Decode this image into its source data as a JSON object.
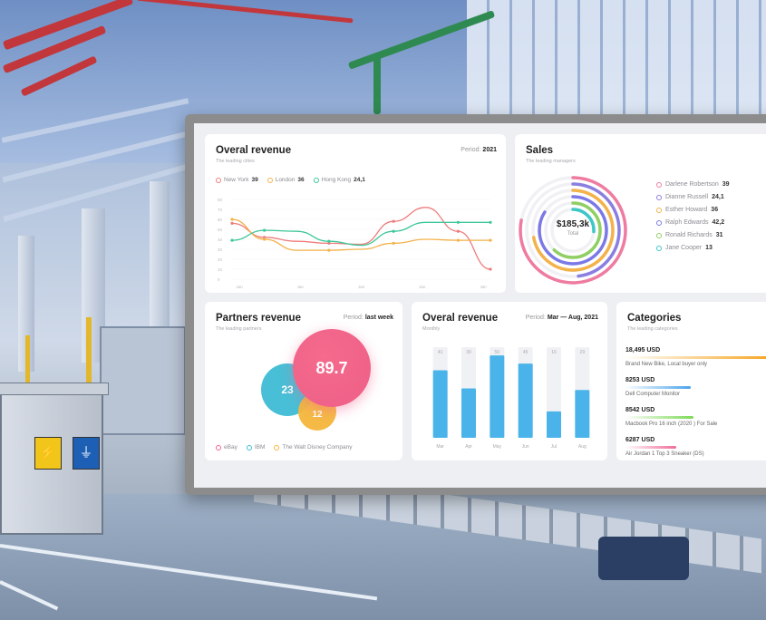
{
  "dashboard": {
    "revenue_line": {
      "title": "Overal revenue",
      "subtitle": "The leading cities",
      "period_label": "Period:",
      "period_value": "2021",
      "legend": [
        {
          "name": "New York",
          "value": "39",
          "color": "#ef7c7c"
        },
        {
          "name": "London",
          "value": "36",
          "color": "#f3b24a"
        },
        {
          "name": "Hong Kong",
          "value": "24,1",
          "color": "#3ec79a"
        }
      ],
      "y_ticks": [
        "80",
        "70",
        "60",
        "50",
        "40",
        "30",
        "20",
        "10",
        "0"
      ],
      "x_ticks": [
        "Jan",
        "Jan",
        "Jan",
        "Jan",
        "Jan"
      ],
      "chart_data": {
        "type": "line",
        "x": [
          0,
          1,
          2,
          3,
          4,
          5,
          6,
          7,
          8
        ],
        "ylim": [
          0,
          80
        ],
        "series": [
          {
            "name": "New York",
            "color": "#ef7c7c",
            "values": [
              56,
              42,
              38,
              36,
              35,
              58,
              72,
              48,
              10
            ]
          },
          {
            "name": "London",
            "color": "#f3b24a",
            "values": [
              60,
              40,
              29,
              29,
              30,
              36,
              40,
              39,
              39
            ]
          },
          {
            "name": "Hong Kong",
            "color": "#3ec79a",
            "values": [
              39,
              49,
              48,
              38,
              34,
              48,
              57,
              57,
              57
            ]
          }
        ]
      }
    },
    "sales": {
      "title": "Sales",
      "subtitle": "The leading managers",
      "total_value": "$185,3k",
      "total_label": "Total",
      "managers": [
        {
          "name": "Darlene Robertson",
          "value": "39",
          "color": "#ef7ca0",
          "share": 0.78
        },
        {
          "name": "Dianne Russell",
          "value": "24,1",
          "color": "#8a7fe0",
          "share": 0.48
        },
        {
          "name": "Esther Howard",
          "value": "36",
          "color": "#f3b24a",
          "share": 0.72
        },
        {
          "name": "Ralph Edwards",
          "value": "42,2",
          "color": "#7b79e6",
          "share": 0.84
        },
        {
          "name": "Ronald Richards",
          "value": "31",
          "color": "#8fcf63",
          "share": 0.62
        },
        {
          "name": "Jane Cooper",
          "value": "13",
          "color": "#3ec7c7",
          "share": 0.26
        }
      ]
    },
    "partners": {
      "title": "Partners revenue",
      "subtitle": "The leading partners",
      "period_label": "Period:",
      "period_value": "last week",
      "bubbles": [
        {
          "name": "eBay",
          "value": "89.7",
          "color": "#f0668e"
        },
        {
          "name": "IBM",
          "value": "23",
          "color": "#3fbcd4"
        },
        {
          "name": "The Walt Disney Company",
          "value": "12",
          "color": "#f5b73c"
        }
      ]
    },
    "revenue_bar": {
      "title": "Overal revenue",
      "subtitle": "Monthly",
      "period_label": "Period:",
      "period_value": "Mar — Aug, 2021",
      "chart_data": {
        "type": "bar",
        "categories": [
          "Mar",
          "Apr",
          "May",
          "Jun",
          "Jul",
          "Aug"
        ],
        "values": [
          41,
          30,
          50,
          45,
          16,
          29
        ],
        "ylim": [
          0,
          55
        ]
      }
    },
    "categories": {
      "title": "Categories",
      "subtitle": "The leading categories",
      "items": [
        {
          "value": "18,495 USD",
          "name": "Brand New Bike, Local buyer only",
          "color": "#f5a623",
          "fraction": 1.0
        },
        {
          "value": "8253 USD",
          "name": "Dell Computer Monitor",
          "color": "#4aa3ea",
          "fraction": 0.45
        },
        {
          "value": "8542 USD",
          "name": "Macbook Pro 16 inch (2020 ) For Sale",
          "color": "#7ed957",
          "fraction": 0.47
        },
        {
          "value": "6287 USD",
          "name": "Air Jordan 1 Top 3 Sneaker (DS)",
          "color": "#f06b9a",
          "fraction": 0.35
        }
      ]
    }
  },
  "scene": {
    "warning_sign_text": "⚡",
    "ground_sign_text": "⏚"
  }
}
